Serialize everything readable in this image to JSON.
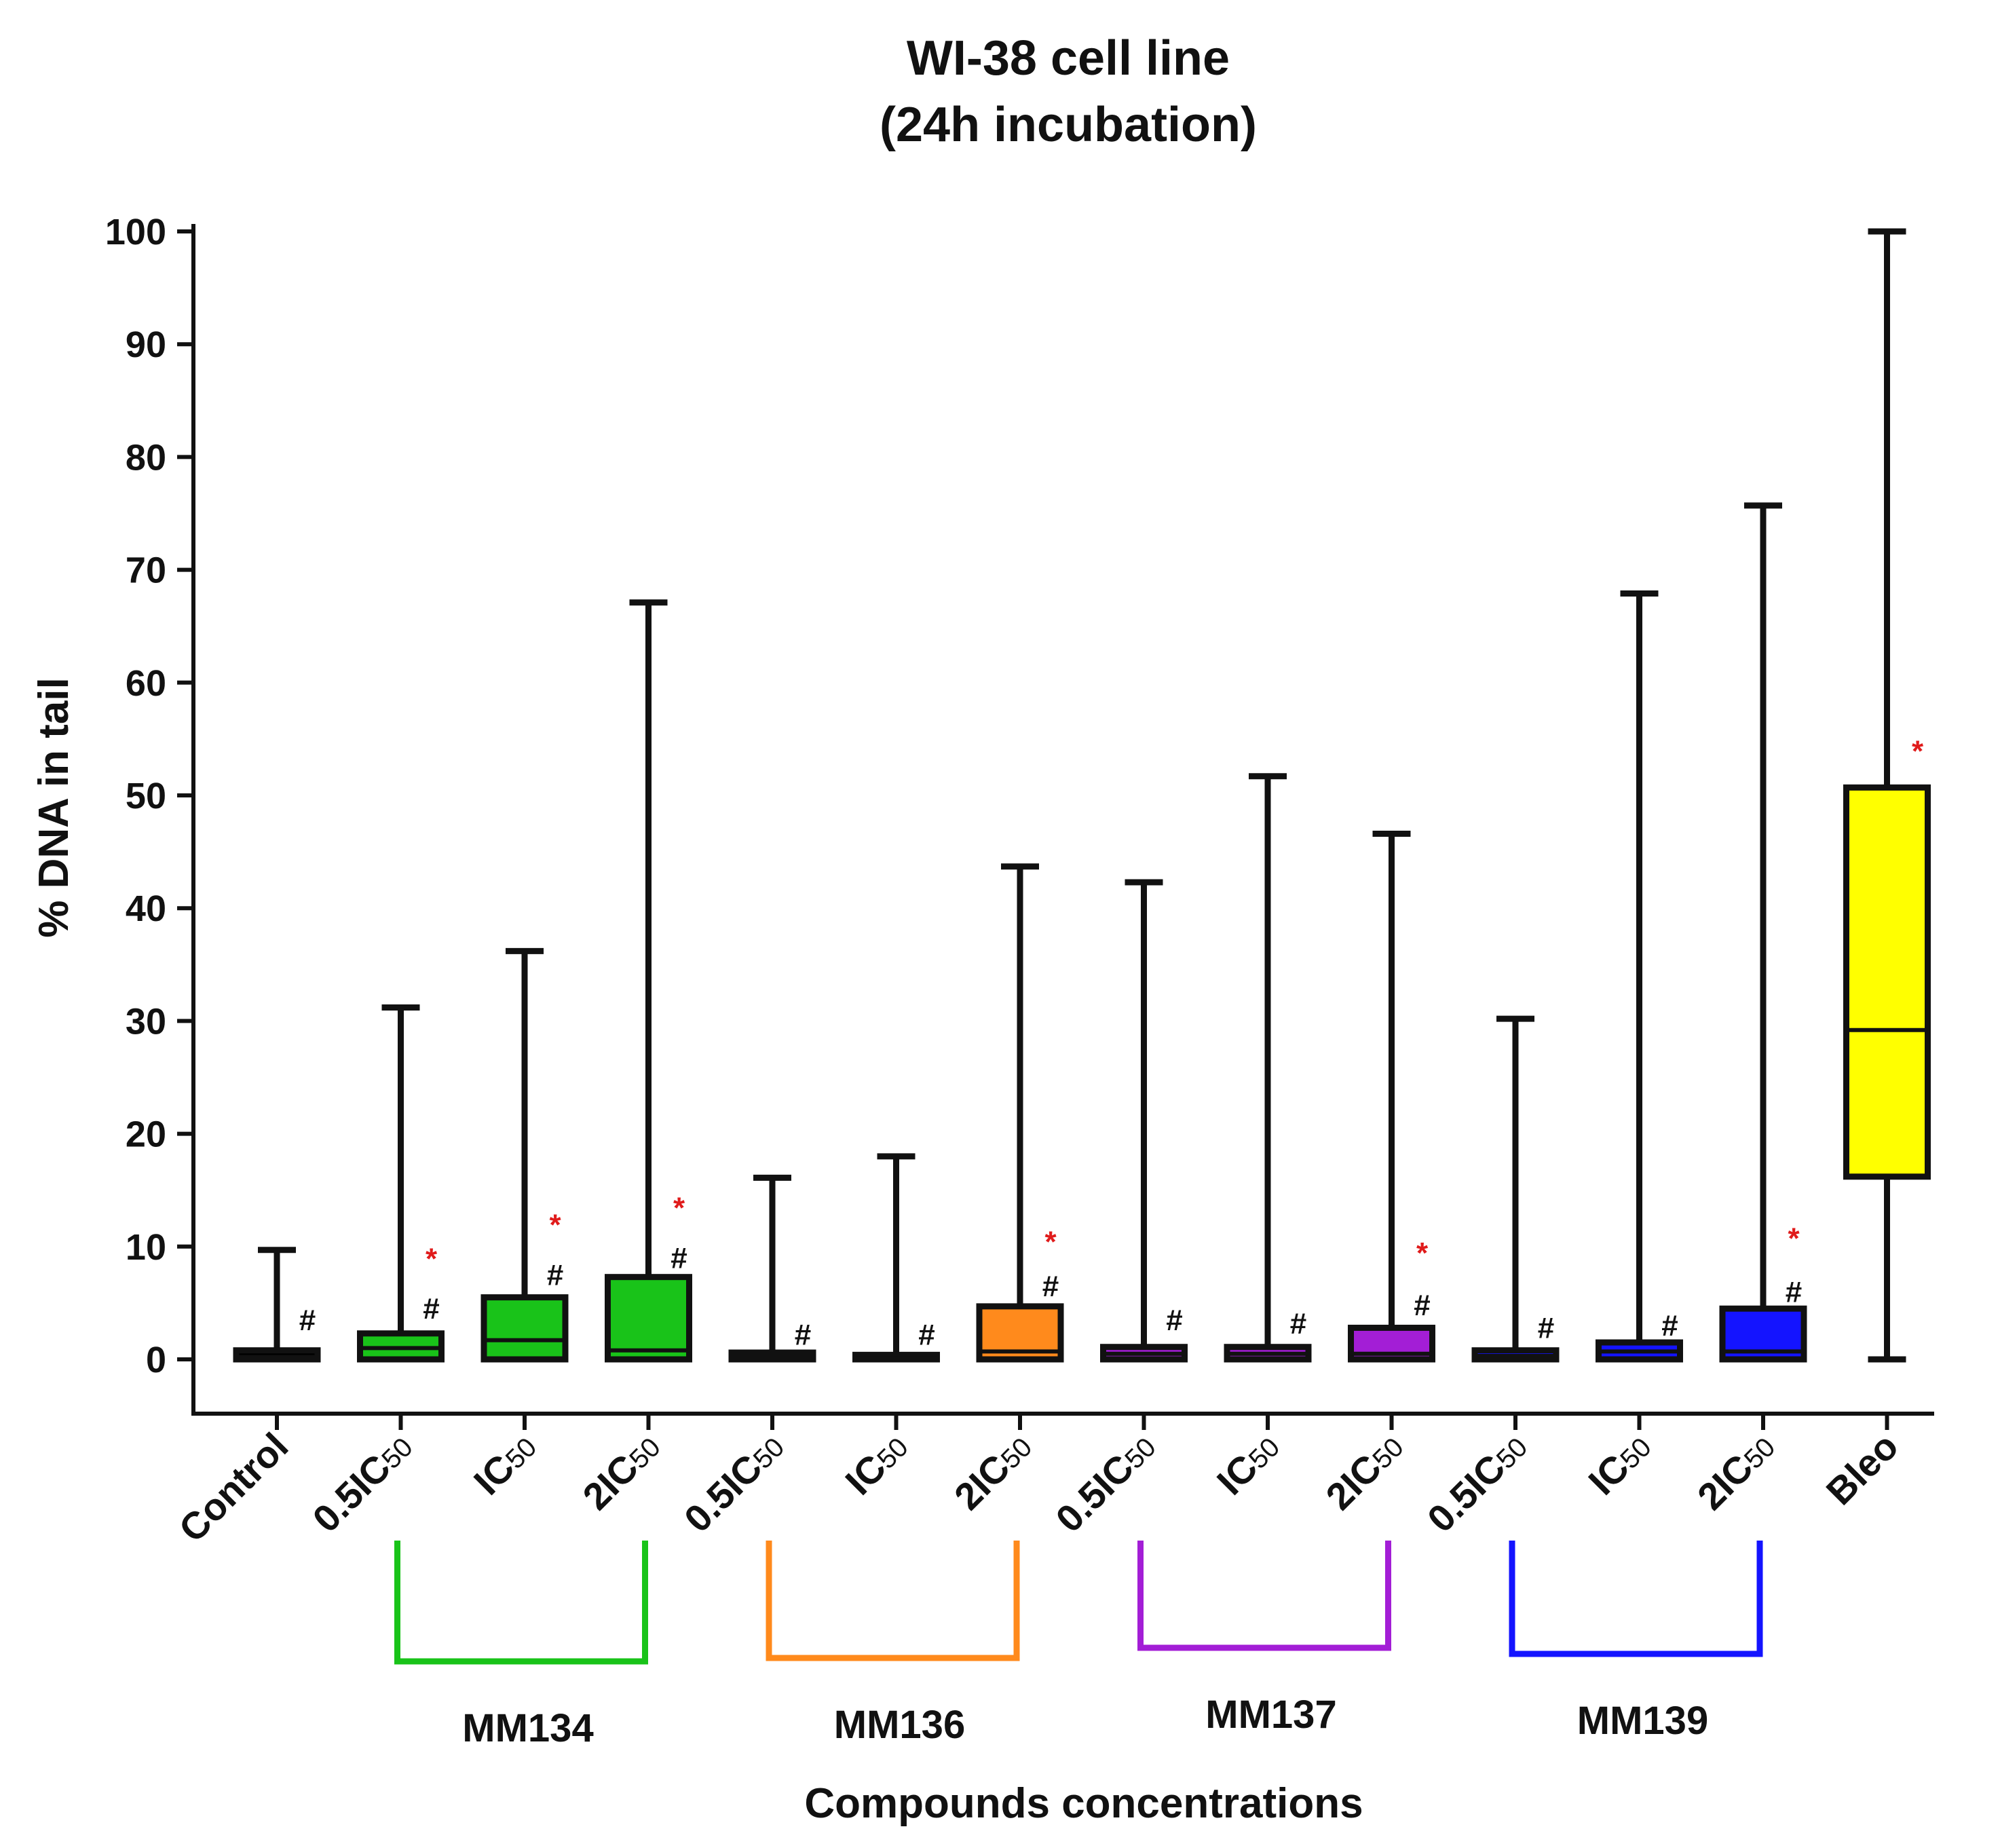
{
  "chart_data": {
    "type": "boxplot",
    "title": [
      "WI-38 cell line",
      "(24h incubation)"
    ],
    "ylabel": "% DNA in tail",
    "xlabel": "Compounds concentrations",
    "ylim": [
      -5,
      100
    ],
    "yticks": [
      0,
      10,
      20,
      30,
      40,
      50,
      60,
      70,
      80,
      90,
      100
    ],
    "colors": {
      "control": "#000000",
      "MM134": "#19c319",
      "MM136": "#ff8a1c",
      "MM137": "#a31ed6",
      "MM139": "#1414ff",
      "Bleo": "#ffff00",
      "star": "#e01b1b",
      "hash": "#1f3fe0"
    },
    "categories": [
      {
        "label": "Control",
        "sub": "",
        "group": "control",
        "min": 0,
        "q1": 0,
        "median": 0.2,
        "q3": 0.8,
        "max": 9.7,
        "star": false,
        "hash": true,
        "star_y": null,
        "hash_y": 3.5
      },
      {
        "label": "0.5IC",
        "sub": "50",
        "group": "MM134",
        "min": 0,
        "q1": 0,
        "median": 1.0,
        "q3": 2.3,
        "max": 31.2,
        "star": true,
        "hash": true,
        "star_y": 9.0,
        "hash_y": 4.5
      },
      {
        "label": "IC",
        "sub": "50",
        "group": "MM134",
        "min": 0,
        "q1": 0,
        "median": 1.7,
        "q3": 5.5,
        "max": 36.2,
        "star": true,
        "hash": true,
        "star_y": 12.0,
        "hash_y": 7.5
      },
      {
        "label": "2IC",
        "sub": "50",
        "group": "MM134",
        "min": 0,
        "q1": 0,
        "median": 0.8,
        "q3": 7.3,
        "max": 67.1,
        "star": true,
        "hash": true,
        "star_y": 13.5,
        "hash_y": 9.0
      },
      {
        "label": "0.5IC",
        "sub": "50",
        "group": "MM136",
        "min": 0,
        "q1": 0,
        "median": 0.2,
        "q3": 0.6,
        "max": 16.1,
        "star": false,
        "hash": true,
        "star_y": null,
        "hash_y": 2.2
      },
      {
        "label": "IC",
        "sub": "50",
        "group": "MM136",
        "min": 0,
        "q1": 0,
        "median": 0.1,
        "q3": 0.4,
        "max": 18.0,
        "star": false,
        "hash": true,
        "star_y": null,
        "hash_y": 2.2
      },
      {
        "label": "2IC",
        "sub": "50",
        "group": "MM136",
        "min": 0,
        "q1": 0,
        "median": 0.7,
        "q3": 4.7,
        "max": 43.7,
        "star": true,
        "hash": true,
        "star_y": 10.5,
        "hash_y": 6.5
      },
      {
        "label": "0.5IC",
        "sub": "50",
        "group": "MM137",
        "min": 0,
        "q1": 0,
        "median": 0.5,
        "q3": 1.1,
        "max": 42.3,
        "star": false,
        "hash": true,
        "star_y": null,
        "hash_y": 3.5
      },
      {
        "label": "IC",
        "sub": "50",
        "group": "MM137",
        "min": 0,
        "q1": 0,
        "median": 0.5,
        "q3": 1.1,
        "max": 51.7,
        "star": false,
        "hash": true,
        "star_y": null,
        "hash_y": 3.2
      },
      {
        "label": "2IC",
        "sub": "50",
        "group": "MM137",
        "min": 0,
        "q1": 0,
        "median": 0.5,
        "q3": 2.8,
        "max": 46.6,
        "star": true,
        "hash": true,
        "star_y": 9.5,
        "hash_y": 4.8
      },
      {
        "label": "0.5IC",
        "sub": "50",
        "group": "MM139",
        "min": 0,
        "q1": 0,
        "median": 0.3,
        "q3": 0.8,
        "max": 30.2,
        "star": false,
        "hash": true,
        "star_y": null,
        "hash_y": 2.8
      },
      {
        "label": "IC",
        "sub": "50",
        "group": "MM139",
        "min": 0,
        "q1": 0,
        "median": 0.7,
        "q3": 1.5,
        "max": 67.9,
        "star": false,
        "hash": true,
        "star_y": null,
        "hash_y": 3.0
      },
      {
        "label": "2IC",
        "sub": "50",
        "group": "MM139",
        "min": 0,
        "q1": 0,
        "median": 0.7,
        "q3": 4.5,
        "max": 75.7,
        "star": true,
        "hash": true,
        "star_y": 10.8,
        "hash_y": 6.0
      },
      {
        "label": "Bleo",
        "sub": "",
        "group": "Bleo",
        "min": 0,
        "q1": 16.2,
        "median": 29.2,
        "q3": 50.7,
        "max": 100,
        "star": true,
        "hash": false,
        "star_y": 54.0,
        "hash_y": null
      }
    ],
    "groups": [
      {
        "name": "MM134",
        "first": 1,
        "last": 3
      },
      {
        "name": "MM136",
        "first": 4,
        "last": 6
      },
      {
        "name": "MM137",
        "first": 7,
        "last": 9
      },
      {
        "name": "MM139",
        "first": 10,
        "last": 12
      }
    ],
    "star_symbol": "*",
    "hash_symbol": "#"
  }
}
